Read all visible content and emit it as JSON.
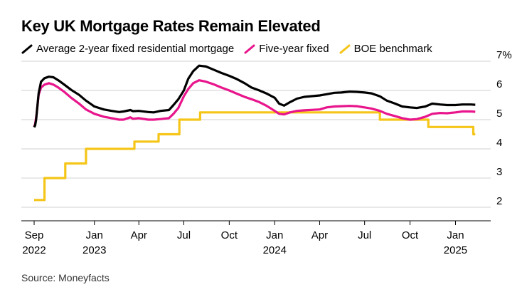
{
  "title": "Key UK Mortgage Rates Remain Elevated",
  "source": "Source: Moneyfacts",
  "legend": [
    {
      "label": "Average 2-year fixed residential mortgage",
      "color": "#000000"
    },
    {
      "label": "Five-year fixed",
      "color": "#e8158c"
    },
    {
      "label": "BOE benchmark",
      "color": "#f5c518"
    }
  ],
  "chart_data": {
    "type": "line",
    "title": "Key UK Mortgage Rates Remain Elevated",
    "xlabel": "",
    "ylabel": "",
    "x_range": [
      "2022-09-01",
      "2025-03-01"
    ],
    "ylim": [
      1.5,
      7
    ],
    "y_ticks": [
      2,
      3,
      4,
      5,
      6,
      7
    ],
    "y_tick_labels": [
      "2",
      "3",
      "4",
      "5",
      "6",
      "7%"
    ],
    "x_ticks": [
      {
        "date": "2022-09-01",
        "label": "Sep",
        "year": "2022"
      },
      {
        "date": "2023-01-01",
        "label": "Jan",
        "year": "2023"
      },
      {
        "date": "2023-04-01",
        "label": "Apr",
        "year": ""
      },
      {
        "date": "2023-07-01",
        "label": "Jul",
        "year": ""
      },
      {
        "date": "2023-10-01",
        "label": "Oct",
        "year": ""
      },
      {
        "date": "2024-01-01",
        "label": "Jan",
        "year": "2024"
      },
      {
        "date": "2024-04-01",
        "label": "Apr",
        "year": ""
      },
      {
        "date": "2024-07-01",
        "label": "Jul",
        "year": ""
      },
      {
        "date": "2024-10-01",
        "label": "Oct",
        "year": ""
      },
      {
        "date": "2025-01-01",
        "label": "Jan",
        "year": "2025"
      }
    ],
    "grid": "horizontal",
    "legend_position": "top-left",
    "series": [
      {
        "name": "Average 2-year fixed residential mortgage",
        "color": "#000000",
        "points": [
          [
            "2022-09-01",
            4.74
          ],
          [
            "2022-09-03",
            4.8
          ],
          [
            "2022-09-05",
            5.0
          ],
          [
            "2022-09-10",
            5.9
          ],
          [
            "2022-09-15",
            6.3
          ],
          [
            "2022-09-22",
            6.42
          ],
          [
            "2022-10-01",
            6.47
          ],
          [
            "2022-10-10",
            6.45
          ],
          [
            "2022-10-20",
            6.35
          ],
          [
            "2022-11-01",
            6.2
          ],
          [
            "2022-11-15",
            6.02
          ],
          [
            "2022-12-01",
            5.85
          ],
          [
            "2022-12-15",
            5.65
          ],
          [
            "2023-01-01",
            5.45
          ],
          [
            "2023-01-20",
            5.35
          ],
          [
            "2023-02-05",
            5.3
          ],
          [
            "2023-02-20",
            5.26
          ],
          [
            "2023-03-01",
            5.28
          ],
          [
            "2023-03-15",
            5.33
          ],
          [
            "2023-03-20",
            5.29
          ],
          [
            "2023-04-01",
            5.3
          ],
          [
            "2023-04-20",
            5.26
          ],
          [
            "2023-05-01",
            5.25
          ],
          [
            "2023-05-15",
            5.3
          ],
          [
            "2023-06-01",
            5.33
          ],
          [
            "2023-06-10",
            5.5
          ],
          [
            "2023-06-20",
            5.7
          ],
          [
            "2023-07-01",
            6.0
          ],
          [
            "2023-07-10",
            6.4
          ],
          [
            "2023-07-20",
            6.66
          ],
          [
            "2023-08-01",
            6.85
          ],
          [
            "2023-08-15",
            6.82
          ],
          [
            "2023-09-01",
            6.7
          ],
          [
            "2023-09-15",
            6.6
          ],
          [
            "2023-10-01",
            6.5
          ],
          [
            "2023-10-15",
            6.4
          ],
          [
            "2023-11-01",
            6.25
          ],
          [
            "2023-11-15",
            6.1
          ],
          [
            "2023-12-01",
            6.0
          ],
          [
            "2023-12-15",
            5.9
          ],
          [
            "2024-01-01",
            5.75
          ],
          [
            "2024-01-10",
            5.55
          ],
          [
            "2024-01-20",
            5.48
          ],
          [
            "2024-02-01",
            5.6
          ],
          [
            "2024-02-15",
            5.72
          ],
          [
            "2024-03-01",
            5.78
          ],
          [
            "2024-04-01",
            5.83
          ],
          [
            "2024-04-15",
            5.87
          ],
          [
            "2024-05-01",
            5.92
          ],
          [
            "2024-05-15",
            5.93
          ],
          [
            "2024-06-01",
            5.96
          ],
          [
            "2024-06-15",
            5.95
          ],
          [
            "2024-07-01",
            5.93
          ],
          [
            "2024-07-15",
            5.9
          ],
          [
            "2024-08-01",
            5.8
          ],
          [
            "2024-08-15",
            5.65
          ],
          [
            "2024-09-01",
            5.55
          ],
          [
            "2024-09-15",
            5.45
          ],
          [
            "2024-10-01",
            5.42
          ],
          [
            "2024-10-15",
            5.4
          ],
          [
            "2024-11-01",
            5.45
          ],
          [
            "2024-11-15",
            5.55
          ],
          [
            "2024-12-01",
            5.52
          ],
          [
            "2024-12-15",
            5.5
          ],
          [
            "2025-01-01",
            5.5
          ],
          [
            "2025-01-15",
            5.52
          ],
          [
            "2025-02-01",
            5.52
          ],
          [
            "2025-02-10",
            5.51
          ]
        ]
      },
      {
        "name": "Five-year fixed",
        "color": "#e8158c",
        "points": [
          [
            "2022-09-01",
            4.75
          ],
          [
            "2022-09-03",
            4.85
          ],
          [
            "2022-09-06",
            5.2
          ],
          [
            "2022-09-10",
            5.85
          ],
          [
            "2022-09-15",
            6.1
          ],
          [
            "2022-09-22",
            6.2
          ],
          [
            "2022-10-01",
            6.25
          ],
          [
            "2022-10-10",
            6.2
          ],
          [
            "2022-10-20",
            6.1
          ],
          [
            "2022-11-01",
            5.95
          ],
          [
            "2022-11-15",
            5.75
          ],
          [
            "2022-12-01",
            5.55
          ],
          [
            "2022-12-15",
            5.35
          ],
          [
            "2023-01-01",
            5.2
          ],
          [
            "2023-01-20",
            5.1
          ],
          [
            "2023-02-05",
            5.05
          ],
          [
            "2023-02-20",
            5.0
          ],
          [
            "2023-03-01",
            5.0
          ],
          [
            "2023-03-15",
            5.08
          ],
          [
            "2023-03-20",
            5.03
          ],
          [
            "2023-04-01",
            5.05
          ],
          [
            "2023-04-20",
            5.0
          ],
          [
            "2023-05-01",
            5.0
          ],
          [
            "2023-05-15",
            5.02
          ],
          [
            "2023-06-01",
            5.05
          ],
          [
            "2023-06-10",
            5.2
          ],
          [
            "2023-06-20",
            5.4
          ],
          [
            "2023-07-01",
            5.8
          ],
          [
            "2023-07-10",
            6.05
          ],
          [
            "2023-07-20",
            6.25
          ],
          [
            "2023-08-01",
            6.35
          ],
          [
            "2023-08-15",
            6.3
          ],
          [
            "2023-09-01",
            6.2
          ],
          [
            "2023-09-15",
            6.1
          ],
          [
            "2023-10-01",
            6.0
          ],
          [
            "2023-10-15",
            5.9
          ],
          [
            "2023-11-01",
            5.78
          ],
          [
            "2023-11-15",
            5.7
          ],
          [
            "2023-12-01",
            5.6
          ],
          [
            "2023-12-15",
            5.48
          ],
          [
            "2024-01-01",
            5.3
          ],
          [
            "2024-01-10",
            5.2
          ],
          [
            "2024-01-20",
            5.18
          ],
          [
            "2024-02-01",
            5.25
          ],
          [
            "2024-02-15",
            5.3
          ],
          [
            "2024-03-01",
            5.32
          ],
          [
            "2024-04-01",
            5.35
          ],
          [
            "2024-04-15",
            5.42
          ],
          [
            "2024-05-01",
            5.45
          ],
          [
            "2024-05-15",
            5.46
          ],
          [
            "2024-06-01",
            5.47
          ],
          [
            "2024-06-15",
            5.46
          ],
          [
            "2024-07-01",
            5.42
          ],
          [
            "2024-07-15",
            5.38
          ],
          [
            "2024-08-01",
            5.3
          ],
          [
            "2024-08-15",
            5.2
          ],
          [
            "2024-09-01",
            5.12
          ],
          [
            "2024-09-15",
            5.05
          ],
          [
            "2024-10-01",
            5.0
          ],
          [
            "2024-10-15",
            5.02
          ],
          [
            "2024-11-01",
            5.1
          ],
          [
            "2024-11-15",
            5.2
          ],
          [
            "2024-12-01",
            5.23
          ],
          [
            "2024-12-15",
            5.22
          ],
          [
            "2025-01-01",
            5.25
          ],
          [
            "2025-01-15",
            5.28
          ],
          [
            "2025-02-01",
            5.28
          ],
          [
            "2025-02-10",
            5.27
          ]
        ]
      },
      {
        "name": "BOE benchmark",
        "color": "#f5c518",
        "step": true,
        "points": [
          [
            "2022-09-01",
            2.25
          ],
          [
            "2022-09-22",
            2.25
          ],
          [
            "2022-09-22",
            3.0
          ],
          [
            "2022-11-03",
            3.0
          ],
          [
            "2022-11-03",
            3.5
          ],
          [
            "2022-12-15",
            3.5
          ],
          [
            "2022-12-15",
            4.0
          ],
          [
            "2023-02-02",
            4.0
          ],
          [
            "2023-03-23",
            4.25
          ],
          [
            "2023-05-11",
            4.5
          ],
          [
            "2023-06-22",
            5.0
          ],
          [
            "2023-08-03",
            5.25
          ],
          [
            "2024-08-01",
            5.0
          ],
          [
            "2024-11-07",
            4.75
          ],
          [
            "2025-02-06",
            4.5
          ],
          [
            "2025-02-10",
            4.5
          ]
        ]
      }
    ]
  }
}
